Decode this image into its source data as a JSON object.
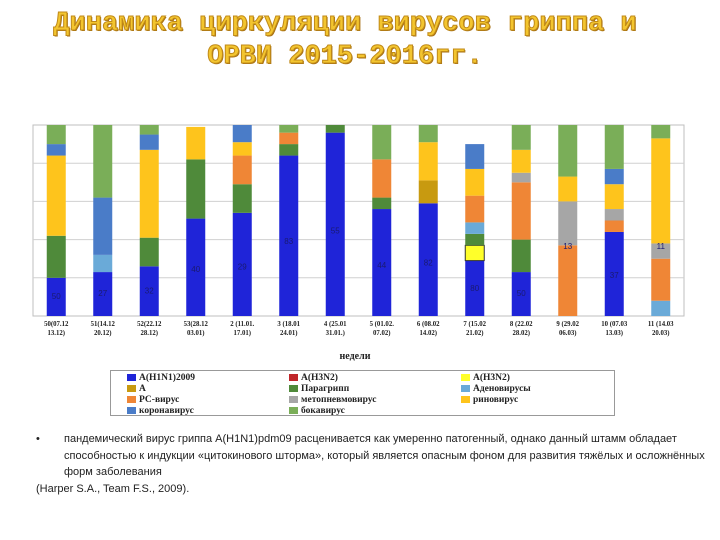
{
  "title": {
    "line1": "Динамика циркуляции вирусов гриппа и",
    "line2": "ОРВИ 2015-2016гг."
  },
  "chart_data": {
    "type": "bar",
    "stacked": true,
    "xlabel": "недели",
    "ylim": [
      0,
      100
    ],
    "categories": [
      "50(07.12 13.12)",
      "51(14.12 20.12)",
      "52(22.12 28.12)",
      "53(28.12 03.01)",
      "2 (11.01. 17.01)",
      "3 (18.01 24.01)",
      "4 (25.01 31.01.)",
      "5 (01.02. 07.02)",
      "6 (08.02 14.02)",
      "7 (15.02 21.02)",
      "8 (22.02 28.02)",
      "9 (29.02 06.03)",
      "10 (07.03 13.03)",
      "11 (14.03 20.03)"
    ],
    "series": [
      {
        "name": "A(H1N1)2009",
        "color": "#1f24d8",
        "values": [
          20,
          23,
          26,
          51,
          54,
          84,
          96,
          56,
          59,
          29,
          23,
          0,
          44,
          0
        ]
      },
      {
        "name": "A(H3N2)",
        "color": "#ffff2a",
        "values": [
          0,
          0,
          0,
          0,
          0,
          0,
          0,
          0,
          0,
          8,
          0,
          0,
          0,
          0
        ]
      },
      {
        "name": "A",
        "color": "#c89a10",
        "values": [
          0,
          0,
          0,
          0,
          0,
          0,
          0,
          0,
          12,
          0,
          0,
          0,
          0,
          0
        ]
      },
      {
        "name": "Парагрипп",
        "color": "#4f8a3a",
        "values": [
          22,
          0,
          15,
          31,
          15,
          6,
          4,
          6,
          0,
          6,
          17,
          0,
          0,
          0
        ]
      },
      {
        "name": "Аденовирусы",
        "color": "#6aaad8",
        "values": [
          0,
          9,
          0,
          0,
          0,
          0,
          0,
          0,
          0,
          6,
          0,
          0,
          0,
          8
        ]
      },
      {
        "name": "РС-вирус",
        "color": "#ef8636",
        "values": [
          0,
          0,
          0,
          0,
          15,
          6,
          0,
          20,
          0,
          14,
          30,
          37,
          6,
          22
        ]
      },
      {
        "name": "метопневмовирус",
        "color": "#a6a6a6",
        "values": [
          0,
          0,
          0,
          0,
          0,
          0,
          0,
          0,
          0,
          0,
          5,
          23,
          6,
          8
        ]
      },
      {
        "name": "риновирус",
        "color": "#fec41c",
        "values": [
          42,
          0,
          46,
          17,
          7,
          0,
          0,
          0,
          20,
          14,
          12,
          13,
          13,
          55
        ]
      },
      {
        "name": "коронавирус",
        "color": "#4a7cc8",
        "values": [
          6,
          30,
          8,
          0,
          9,
          0,
          0,
          0,
          0,
          13,
          0,
          0,
          8,
          0
        ]
      },
      {
        "name": "бокавирус",
        "color": "#7aae58",
        "values": [
          10,
          38,
          5,
          0,
          0,
          4,
          0,
          18,
          9,
          0,
          13,
          27,
          23,
          7
        ]
      }
    ],
    "bar_labels": [
      "50",
      "27",
      "32",
      "40",
      "29",
      "83",
      "55",
      "44",
      "82",
      "80",
      "50",
      "13",
      "37",
      "11"
    ]
  },
  "legend": {
    "items": [
      {
        "label": "A(H1N1)2009",
        "color": "#1f24d8"
      },
      {
        "label": "A(H3N2)",
        "color": "#c0262a"
      },
      {
        "label": "A(H3N2)",
        "color": "#ffff2a"
      },
      {
        "label": "A",
        "color": "#c89a10"
      },
      {
        "label": "Парагрипп",
        "color": "#4f8a3a"
      },
      {
        "label": "Аденовирусы",
        "color": "#6aaad8"
      },
      {
        "label": "РС-вирус",
        "color": "#ef8636"
      },
      {
        "label": "метопневмовирус",
        "color": "#a6a6a6"
      },
      {
        "label": "риновирус",
        "color": "#fec41c"
      },
      {
        "label": "коронавирус",
        "color": "#4a7cc8"
      },
      {
        "label": "бокавирус",
        "color": "#7aae58"
      }
    ]
  },
  "bullet": {
    "marker": "•",
    "text": "пандемический вирус гриппа A(H1N1)pdm09 расценивается как умеренно патогенный, однако данный штамм обладает способностью к индукции «цитокинового шторма», который является опасным фоном для развития тяжёлых и осложнённых форм заболевания",
    "reference": "(Harper S.A., Team F.S., 2009)."
  }
}
